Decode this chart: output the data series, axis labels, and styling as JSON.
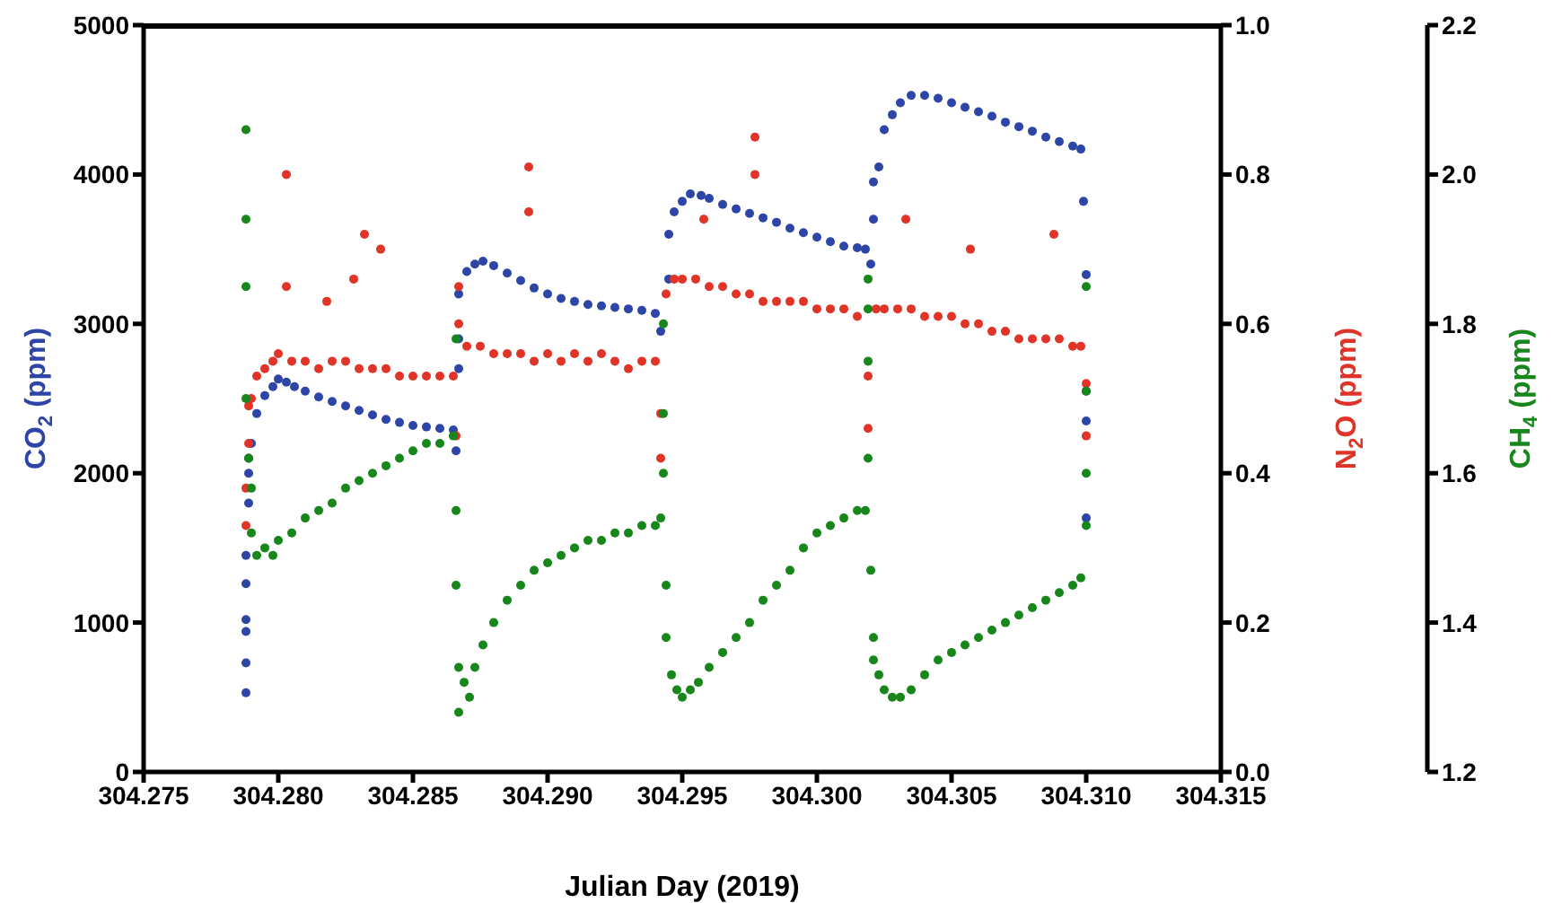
{
  "chart_data": {
    "type": "scatter",
    "marker": "circle",
    "xlabel": "Julian Day (2019)",
    "ylabel": "CO$_{2}$ (ppm)",
    "y2label": "N$_{2}$O (ppm)",
    "y3label": "CH$_{4}$ (ppm)",
    "xlim": [
      304.275,
      304.315
    ],
    "xticks": [
      {
        "value": 304.275,
        "label": "304.275"
      },
      {
        "value": 304.28,
        "label": "304.280"
      },
      {
        "value": 304.285,
        "label": "304.285"
      },
      {
        "value": 304.29,
        "label": "304.290"
      },
      {
        "value": 304.295,
        "label": "304.295"
      },
      {
        "value": 304.3,
        "label": "304.300"
      },
      {
        "value": 304.305,
        "label": "304.305"
      },
      {
        "value": 304.31,
        "label": "304.310"
      },
      {
        "value": 304.315,
        "label": "304.315"
      }
    ],
    "ylim": [
      0,
      5000
    ],
    "yticks": [
      0,
      1000,
      2000,
      3000,
      4000,
      5000
    ],
    "y2lim": [
      0,
      1
    ],
    "y2ticks": [
      {
        "value": 0,
        "label": "0.0"
      },
      {
        "value": 0.2,
        "label": "0.2"
      },
      {
        "value": 0.4,
        "label": "0.4"
      },
      {
        "value": 0.6,
        "label": "0.6"
      },
      {
        "value": 0.8,
        "label": "0.8"
      },
      {
        "value": 1,
        "label": "1.0"
      }
    ],
    "y3lim": [
      1.2,
      2.2
    ],
    "y3ticks": [
      1.2,
      1.4,
      1.6,
      1.8,
      {
        "value": 2,
        "label": "2.0"
      },
      2.2
    ],
    "series": [
      {
        "color": "#2e45a8",
        "axis": "y",
        "x": [
          304.2788,
          304.2788,
          304.2788,
          304.2788,
          304.2788,
          304.2788,
          304.2789,
          304.2789,
          304.2789,
          304.279,
          304.2792,
          304.2795,
          304.2798,
          304.28,
          304.2803,
          304.2806,
          304.281,
          304.2815,
          304.282,
          304.2825,
          304.283,
          304.2835,
          304.284,
          304.2845,
          304.285,
          304.2855,
          304.286,
          304.2865,
          304.2866,
          304.2867,
          304.2867,
          304.2867,
          304.287,
          304.2873,
          304.2876,
          304.288,
          304.2885,
          304.289,
          304.2895,
          304.29,
          304.2905,
          304.291,
          304.2915,
          304.292,
          304.2925,
          304.293,
          304.2935,
          304.294,
          304.2942,
          304.2945,
          304.2945,
          304.2947,
          304.295,
          304.2953,
          304.2957,
          304.296,
          304.2965,
          304.297,
          304.2975,
          304.298,
          304.2985,
          304.299,
          304.2995,
          304.3,
          304.3005,
          304.301,
          304.3015,
          304.3018,
          304.302,
          304.3021,
          304.3021,
          304.3023,
          304.3025,
          304.3028,
          304.3031,
          304.3035,
          304.304,
          304.3045,
          304.305,
          304.3055,
          304.306,
          304.3065,
          304.307,
          304.3075,
          304.308,
          304.3085,
          304.309,
          304.3095,
          304.3098,
          304.3099,
          304.31,
          304.31,
          304.31,
          304.31
        ],
        "values": [
          530,
          730,
          940,
          1020,
          1260,
          1450,
          1800,
          2000,
          2100,
          2200,
          2400,
          2520,
          2580,
          2630,
          2610,
          2580,
          2550,
          2510,
          2480,
          2450,
          2420,
          2390,
          2360,
          2340,
          2320,
          2310,
          2300,
          2290,
          2150,
          2700,
          2900,
          3200,
          3350,
          3400,
          3420,
          3390,
          3340,
          3290,
          3240,
          3200,
          3170,
          3150,
          3130,
          3120,
          3110,
          3100,
          3090,
          3070,
          2950,
          3300,
          3600,
          3750,
          3820,
          3870,
          3860,
          3840,
          3800,
          3770,
          3740,
          3710,
          3680,
          3640,
          3610,
          3580,
          3550,
          3520,
          3510,
          3500,
          3400,
          3700,
          3950,
          4050,
          4300,
          4400,
          4480,
          4530,
          4530,
          4510,
          4480,
          4450,
          4420,
          4390,
          4350,
          4320,
          4290,
          4250,
          4220,
          4190,
          4170,
          3820,
          3330,
          2550,
          2350,
          1700
        ]
      },
      {
        "color": "#e03428",
        "axis": "y2",
        "x": [
          304.2788,
          304.2788,
          304.2789,
          304.2789,
          304.279,
          304.2792,
          304.2795,
          304.2798,
          304.28,
          304.2803,
          304.2803,
          304.2805,
          304.281,
          304.2815,
          304.2818,
          304.282,
          304.2825,
          304.2828,
          304.283,
          304.2832,
          304.2835,
          304.2838,
          304.284,
          304.2845,
          304.285,
          304.2855,
          304.286,
          304.2865,
          304.2866,
          304.2867,
          304.2867,
          304.287,
          304.2875,
          304.288,
          304.2885,
          304.289,
          304.2893,
          304.2893,
          304.2895,
          304.29,
          304.2905,
          304.291,
          304.2915,
          304.292,
          304.2925,
          304.293,
          304.2935,
          304.294,
          304.2942,
          304.2942,
          304.2944,
          304.2947,
          304.295,
          304.2955,
          304.2958,
          304.296,
          304.2965,
          304.297,
          304.2975,
          304.2977,
          304.2977,
          304.298,
          304.2985,
          304.299,
          304.2995,
          304.3,
          304.3005,
          304.301,
          304.3015,
          304.3019,
          304.3019,
          304.3022,
          304.3025,
          304.303,
          304.3033,
          304.3035,
          304.304,
          304.3045,
          304.305,
          304.3055,
          304.3057,
          304.306,
          304.3065,
          304.307,
          304.3075,
          304.308,
          304.3085,
          304.3088,
          304.309,
          304.3095,
          304.3098,
          304.31,
          304.31
        ],
        "values": [
          0.33,
          0.38,
          0.44,
          0.49,
          0.5,
          0.53,
          0.54,
          0.55,
          0.56,
          0.8,
          0.65,
          0.55,
          0.55,
          0.54,
          0.63,
          0.55,
          0.55,
          0.66,
          0.54,
          0.72,
          0.54,
          0.7,
          0.54,
          0.53,
          0.53,
          0.53,
          0.53,
          0.53,
          0.45,
          0.6,
          0.65,
          0.57,
          0.57,
          0.56,
          0.56,
          0.56,
          0.81,
          0.75,
          0.55,
          0.56,
          0.55,
          0.56,
          0.55,
          0.56,
          0.55,
          0.54,
          0.55,
          0.55,
          0.48,
          0.42,
          0.64,
          0.66,
          0.66,
          0.66,
          0.74,
          0.65,
          0.65,
          0.64,
          0.64,
          0.85,
          0.8,
          0.63,
          0.63,
          0.63,
          0.63,
          0.62,
          0.62,
          0.62,
          0.61,
          0.53,
          0.46,
          0.62,
          0.62,
          0.62,
          0.74,
          0.62,
          0.61,
          0.61,
          0.61,
          0.6,
          0.7,
          0.6,
          0.59,
          0.59,
          0.58,
          0.58,
          0.58,
          0.72,
          0.58,
          0.57,
          0.57,
          0.52,
          0.45
        ]
      },
      {
        "color": "#17871c",
        "axis": "y3",
        "x": [
          304.2788,
          304.2788,
          304.2788,
          304.2788,
          304.2789,
          304.279,
          304.279,
          304.2792,
          304.2795,
          304.2798,
          304.28,
          304.2805,
          304.281,
          304.2815,
          304.282,
          304.2825,
          304.283,
          304.2835,
          304.284,
          304.2845,
          304.285,
          304.2855,
          304.286,
          304.2865,
          304.2866,
          304.2866,
          304.2866,
          304.2867,
          304.2867,
          304.2869,
          304.2871,
          304.2873,
          304.2876,
          304.288,
          304.2885,
          304.289,
          304.2895,
          304.29,
          304.2905,
          304.291,
          304.2915,
          304.292,
          304.2925,
          304.293,
          304.2935,
          304.294,
          304.2942,
          304.2943,
          304.2943,
          304.2943,
          304.2944,
          304.2944,
          304.2946,
          304.2948,
          304.295,
          304.2953,
          304.2956,
          304.296,
          304.2965,
          304.297,
          304.2975,
          304.298,
          304.2985,
          304.299,
          304.2995,
          304.3,
          304.3005,
          304.301,
          304.3015,
          304.3018,
          304.3019,
          304.3019,
          304.3019,
          304.3019,
          304.302,
          304.3021,
          304.3021,
          304.3023,
          304.3025,
          304.3028,
          304.3031,
          304.3035,
          304.304,
          304.3045,
          304.305,
          304.3055,
          304.306,
          304.3065,
          304.307,
          304.3075,
          304.308,
          304.3085,
          304.309,
          304.3095,
          304.3098,
          304.31,
          304.31,
          304.31,
          304.31
        ],
        "values": [
          2.06,
          1.94,
          1.85,
          1.7,
          1.62,
          1.58,
          1.52,
          1.49,
          1.5,
          1.49,
          1.51,
          1.52,
          1.54,
          1.55,
          1.56,
          1.58,
          1.59,
          1.6,
          1.61,
          1.62,
          1.63,
          1.64,
          1.64,
          1.65,
          1.78,
          1.55,
          1.45,
          1.34,
          1.28,
          1.32,
          1.3,
          1.34,
          1.37,
          1.4,
          1.43,
          1.45,
          1.47,
          1.48,
          1.49,
          1.5,
          1.51,
          1.51,
          1.52,
          1.52,
          1.53,
          1.53,
          1.54,
          1.6,
          1.68,
          1.8,
          1.45,
          1.38,
          1.33,
          1.31,
          1.3,
          1.31,
          1.32,
          1.34,
          1.36,
          1.38,
          1.4,
          1.43,
          1.45,
          1.47,
          1.5,
          1.52,
          1.53,
          1.54,
          1.55,
          1.55,
          1.62,
          1.75,
          1.82,
          1.86,
          1.47,
          1.38,
          1.35,
          1.33,
          1.31,
          1.3,
          1.3,
          1.31,
          1.33,
          1.35,
          1.36,
          1.37,
          1.38,
          1.39,
          1.4,
          1.41,
          1.42,
          1.43,
          1.44,
          1.45,
          1.46,
          1.53,
          1.6,
          1.71,
          1.85
        ]
      }
    ]
  }
}
